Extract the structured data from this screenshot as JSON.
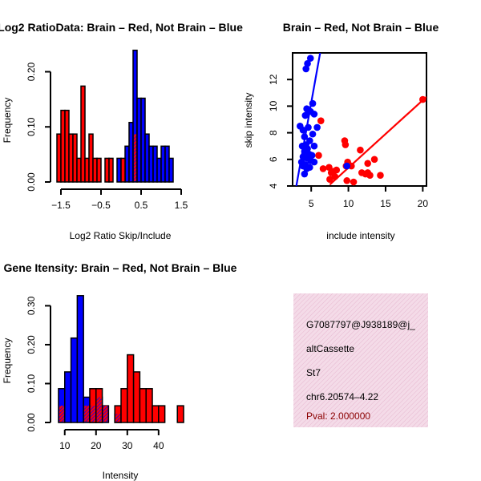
{
  "chart_data": [
    {
      "id": "ratio",
      "type": "histogram",
      "title": "Log2 RatioData: Brain – Red, Not Brain – Blue",
      "xlabel": "Log2 Ratio Skip/Include",
      "ylabel": "Frequency",
      "xticks": [
        -1.5,
        -0.5,
        0.5,
        1.5
      ],
      "xtick_labels": [
        "−1.5",
        "−0.5",
        "0.5",
        "1.5"
      ],
      "yticks": [
        0.0,
        0.1,
        0.2
      ],
      "ytick_labels": [
        "0.00",
        "0.10",
        "0.20"
      ],
      "xlim": [
        -1.6,
        1.6
      ],
      "ylim": [
        0,
        0.24
      ],
      "bin_width": 0.1,
      "series": [
        {
          "name": "Brain",
          "color": "#ff0000",
          "bins": [
            [
              -1.6,
              0.087
            ],
            [
              -1.5,
              0.13
            ],
            [
              -1.4,
              0.13
            ],
            [
              -1.3,
              0.087
            ],
            [
              -1.2,
              0.087
            ],
            [
              -1.1,
              0.043
            ],
            [
              -1.0,
              0.174
            ],
            [
              -0.9,
              0.043
            ],
            [
              -0.8,
              0.087
            ],
            [
              -0.7,
              0.043
            ],
            [
              -0.6,
              0.043
            ],
            [
              -0.4,
              0.043
            ],
            [
              -0.3,
              0.043
            ],
            [
              0.0,
              0.043
            ],
            [
              0.3,
              0.087
            ]
          ]
        },
        {
          "name": "Not Brain",
          "color": "#0000ff",
          "bins": [
            [
              -0.1,
              0.043
            ],
            [
              0.1,
              0.065
            ],
            [
              0.2,
              0.108
            ],
            [
              0.3,
              0.239
            ],
            [
              0.4,
              0.152
            ],
            [
              0.5,
              0.152
            ],
            [
              0.6,
              0.087
            ],
            [
              0.7,
              0.065
            ],
            [
              0.8,
              0.065
            ],
            [
              0.9,
              0.043
            ],
            [
              1.0,
              0.065
            ],
            [
              1.1,
              0.065
            ],
            [
              1.2,
              0.043
            ]
          ]
        }
      ]
    },
    {
      "id": "scatter",
      "type": "scatter",
      "title": "Brain – Red, Not Brain – Blue",
      "xlabel": "include intensity",
      "ylabel": "skip intensity",
      "xlim": [
        2.5,
        20.5
      ],
      "ylim": [
        4,
        14
      ],
      "xticks": [
        5,
        10,
        15,
        20
      ],
      "yticks": [
        4,
        6,
        8,
        10,
        12
      ],
      "series": [
        {
          "name": "Brain",
          "color": "#ff0000",
          "points": [
            [
              20,
              10.5
            ],
            [
              9.5,
              7.4
            ],
            [
              9.6,
              7.1
            ],
            [
              11.6,
              6.7
            ],
            [
              13.5,
              6.0
            ],
            [
              12.6,
              5.7
            ],
            [
              10.4,
              5.5
            ],
            [
              9.9,
              5.8
            ],
            [
              9.7,
              5.5
            ],
            [
              7.4,
              5.4
            ],
            [
              6.6,
              5.3
            ],
            [
              8.0,
              5.1
            ],
            [
              8.4,
              5.2
            ],
            [
              7.7,
              5.0
            ],
            [
              11.8,
              5.0
            ],
            [
              12.3,
              4.9
            ],
            [
              12.6,
              5.0
            ],
            [
              14.3,
              4.8
            ],
            [
              12.9,
              4.8
            ],
            [
              8.2,
              4.7
            ],
            [
              7.5,
              4.5
            ],
            [
              9.8,
              4.4
            ],
            [
              10.7,
              4.3
            ],
            [
              6.3,
              8.9
            ],
            [
              6.0,
              6.3
            ]
          ]
        },
        {
          "name": "Not Brain",
          "color": "#0000ff",
          "points": [
            [
              4.9,
              13.6
            ],
            [
              4.5,
              13.2
            ],
            [
              4.3,
              12.8
            ],
            [
              4.4,
              9.8
            ],
            [
              4.6,
              9.6
            ],
            [
              5.2,
              10.2
            ],
            [
              4.9,
              9.6
            ],
            [
              5.4,
              9.4
            ],
            [
              4.2,
              9.3
            ],
            [
              3.5,
              8.5
            ],
            [
              3.9,
              8.2
            ],
            [
              4.6,
              8.4
            ],
            [
              5.8,
              8.4
            ],
            [
              5.2,
              7.9
            ],
            [
              4.1,
              7.7
            ],
            [
              4.8,
              7.4
            ],
            [
              4.3,
              7.1
            ],
            [
              5.4,
              7.0
            ],
            [
              3.8,
              7.0
            ],
            [
              4.5,
              6.8
            ],
            [
              4.1,
              6.6
            ],
            [
              4.7,
              6.4
            ],
            [
              5.1,
              6.3
            ],
            [
              3.9,
              6.2
            ],
            [
              4.4,
              6.1
            ],
            [
              4.9,
              5.9
            ],
            [
              3.7,
              5.8
            ],
            [
              4.2,
              5.6
            ],
            [
              5.4,
              5.8
            ],
            [
              4.8,
              5.4
            ],
            [
              3.9,
              5.5
            ],
            [
              4.4,
              5.3
            ],
            [
              9.8,
              5.5
            ],
            [
              4.1,
              4.9
            ]
          ]
        }
      ],
      "fit_lines": [
        {
          "name": "Brain fit",
          "color": "#ff0000",
          "from": [
            7.5,
            4.1
          ],
          "to": [
            20.5,
            10.7
          ]
        },
        {
          "name": "Not Brain fit",
          "color": "#0000ff",
          "from": [
            3.0,
            4.0
          ],
          "to": [
            6.2,
            14.0
          ]
        }
      ]
    },
    {
      "id": "intensity",
      "type": "histogram",
      "title": "Gene Itensity: Brain – Red, Not Brain – Blue",
      "xlabel": "Intensity",
      "ylabel": "Frequency",
      "xticks": [
        10,
        20,
        30,
        40
      ],
      "xtick_labels": [
        "10",
        "20",
        "30",
        "40"
      ],
      "yticks": [
        0.0,
        0.1,
        0.2,
        0.3
      ],
      "ytick_labels": [
        "0.00",
        "0.10",
        "0.20",
        "0.30"
      ],
      "xlim": [
        7.5,
        48.5
      ],
      "ylim": [
        0,
        0.34
      ],
      "bin_width": 2,
      "series": [
        {
          "name": "Brain",
          "color": "#ff0000",
          "bins": [
            [
              8,
              0.043
            ],
            [
              16,
              0.043
            ],
            [
              18,
              0.087
            ],
            [
              20,
              0.087
            ],
            [
              22,
              0.043
            ],
            [
              26,
              0.043
            ],
            [
              28,
              0.087
            ],
            [
              30,
              0.174
            ],
            [
              32,
              0.13
            ],
            [
              34,
              0.087
            ],
            [
              36,
              0.087
            ],
            [
              38,
              0.043
            ],
            [
              40,
              0.043
            ],
            [
              46,
              0.043
            ]
          ]
        },
        {
          "name": "Not Brain",
          "color": "#0000ff",
          "bins": [
            [
              8,
              0.087
            ],
            [
              10,
              0.13
            ],
            [
              12,
              0.217
            ],
            [
              14,
              0.326
            ],
            [
              16,
              0.065
            ],
            [
              18,
              0.043
            ],
            [
              20,
              0.065
            ],
            [
              22,
              0.043
            ],
            [
              26,
              0.022
            ]
          ]
        }
      ]
    }
  ],
  "info_box": {
    "background": "#f2d9e6",
    "lines": [
      {
        "text": "G7087797@J938189@j_",
        "color": "#000000"
      },
      {
        "text": "altCassette",
        "color": "#000000"
      },
      {
        "text": "St7",
        "color": "#000000"
      },
      {
        "text": "chr6.20574–4.22",
        "color": "#000000"
      },
      {
        "text": "Pval: 2.000000",
        "color": "#8b0000"
      }
    ]
  }
}
